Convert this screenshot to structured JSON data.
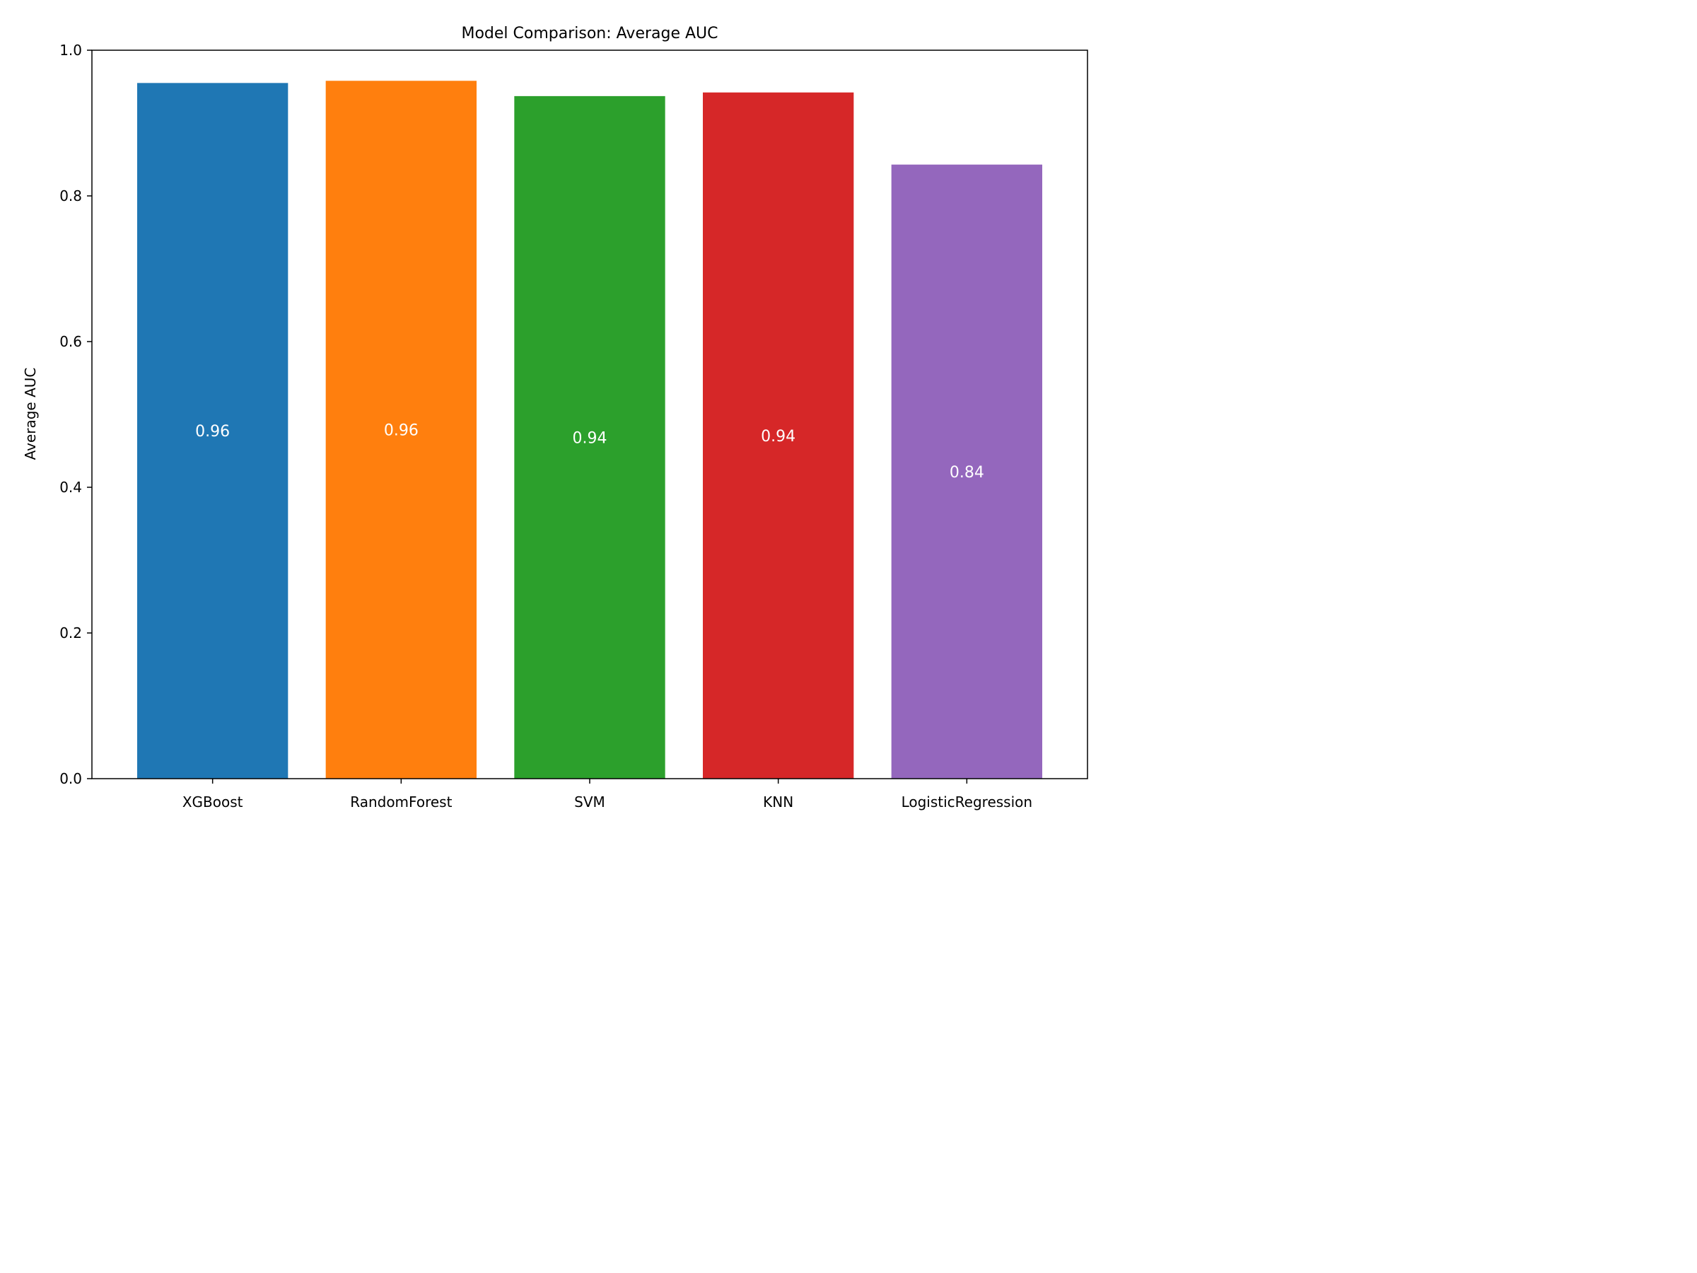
{
  "chart_data": {
    "type": "bar",
    "title": "Model Comparison: Average AUC",
    "xlabel": "",
    "ylabel": "Average AUC",
    "categories": [
      "XGBoost",
      "RandomForest",
      "SVM",
      "KNN",
      "LogisticRegression"
    ],
    "values": [
      0.955,
      0.958,
      0.937,
      0.942,
      0.843
    ],
    "data_labels": [
      "0.96",
      "0.96",
      "0.94",
      "0.94",
      "0.84"
    ],
    "colors": [
      "#1f77b4",
      "#ff7f0e",
      "#2ca02c",
      "#d62728",
      "#9467bd"
    ],
    "label_color": "#ffffff",
    "ylim": [
      0,
      1.0
    ],
    "yticks": [
      0.0,
      0.2,
      0.4,
      0.6,
      0.8,
      1.0
    ],
    "ytick_labels": [
      "0.0",
      "0.2",
      "0.4",
      "0.6",
      "0.8",
      "1.0"
    ],
    "grid": false,
    "legend": "none"
  }
}
